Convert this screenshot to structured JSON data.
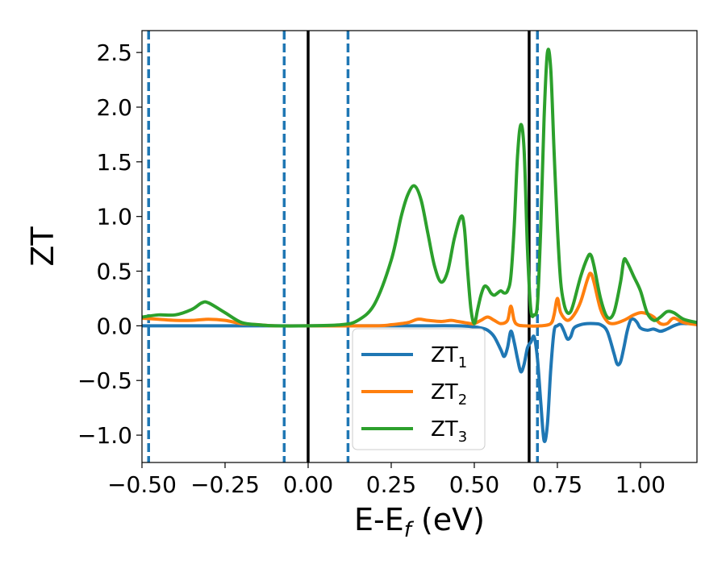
{
  "chart_data": {
    "type": "line",
    "xlabel": "E-E",
    "xlabel_sub": "f",
    "xlabel_unit": "(eV)",
    "ylabel": "ZT",
    "xlim": [
      -0.5,
      1.17
    ],
    "ylim": [
      -1.25,
      2.7
    ],
    "xticks": [
      -0.5,
      -0.25,
      0.0,
      0.25,
      0.5,
      0.75,
      1.0
    ],
    "xtick_labels": [
      "−0.50",
      "−0.25",
      "0.00",
      "0.25",
      "0.50",
      "0.75",
      "1.00"
    ],
    "yticks": [
      -1.0,
      -0.5,
      0.0,
      0.5,
      1.0,
      1.5,
      2.0,
      2.5
    ],
    "ytick_labels": [
      "−1.0",
      "−0.5",
      "0.0",
      "0.5",
      "1.0",
      "1.5",
      "2.0",
      "2.5"
    ],
    "grid": false,
    "legend_position": "lower-center",
    "vlines_solid": [
      0.0,
      0.665
    ],
    "vlines_dashed": [
      -0.48,
      -0.072,
      0.12,
      0.69
    ],
    "series": [
      {
        "name": "ZT",
        "name_sub": "1",
        "color": "#1f77b4",
        "x": [
          -0.5,
          -0.3,
          0.0,
          0.3,
          0.45,
          0.5,
          0.52,
          0.54,
          0.56,
          0.58,
          0.59,
          0.6,
          0.61,
          0.62,
          0.63,
          0.64,
          0.65,
          0.66,
          0.67,
          0.68,
          0.69,
          0.7,
          0.71,
          0.72,
          0.73,
          0.74,
          0.75,
          0.76,
          0.77,
          0.78,
          0.79,
          0.8,
          0.82,
          0.84,
          0.86,
          0.88,
          0.9,
          0.92,
          0.93,
          0.94,
          0.95,
          0.96,
          0.97,
          0.98,
          0.99,
          1.0,
          1.02,
          1.04,
          1.06,
          1.08,
          1.1,
          1.12,
          1.14,
          1.17
        ],
        "y": [
          0.0,
          0.0,
          0.0,
          0.0,
          0.0,
          -0.01,
          -0.02,
          -0.04,
          -0.1,
          -0.22,
          -0.28,
          -0.2,
          -0.05,
          -0.15,
          -0.3,
          -0.42,
          -0.35,
          -0.2,
          -0.15,
          -0.1,
          -0.3,
          -0.7,
          -1.05,
          -0.9,
          -0.4,
          -0.05,
          0.0,
          0.01,
          -0.05,
          -0.12,
          -0.1,
          -0.02,
          0.01,
          0.02,
          0.02,
          0.01,
          -0.05,
          -0.25,
          -0.35,
          -0.33,
          -0.2,
          -0.05,
          0.05,
          0.06,
          0.03,
          -0.02,
          -0.04,
          -0.03,
          -0.05,
          -0.03,
          0.0,
          0.02,
          0.02,
          0.02
        ]
      },
      {
        "name": "ZT",
        "name_sub": "2",
        "color": "#ff7f0e",
        "x": [
          -0.5,
          -0.45,
          -0.4,
          -0.35,
          -0.3,
          -0.25,
          -0.2,
          -0.15,
          -0.1,
          0.0,
          0.2,
          0.25,
          0.3,
          0.33,
          0.36,
          0.4,
          0.43,
          0.45,
          0.47,
          0.49,
          0.5,
          0.52,
          0.54,
          0.56,
          0.58,
          0.6,
          0.61,
          0.62,
          0.63,
          0.65,
          0.7,
          0.73,
          0.74,
          0.75,
          0.76,
          0.78,
          0.8,
          0.82,
          0.84,
          0.85,
          0.86,
          0.88,
          0.9,
          0.92,
          0.95,
          0.98,
          1.0,
          1.02,
          1.04,
          1.06,
          1.08,
          1.1,
          1.13,
          1.17
        ],
        "y": [
          0.07,
          0.06,
          0.05,
          0.05,
          0.06,
          0.05,
          0.02,
          0.01,
          0.0,
          0.0,
          0.0,
          0.01,
          0.03,
          0.06,
          0.05,
          0.04,
          0.05,
          0.04,
          0.03,
          0.02,
          0.02,
          0.05,
          0.08,
          0.05,
          0.02,
          0.05,
          0.18,
          0.05,
          0.01,
          0.0,
          0.0,
          0.02,
          0.1,
          0.25,
          0.12,
          0.05,
          0.1,
          0.22,
          0.42,
          0.48,
          0.4,
          0.15,
          0.04,
          0.02,
          0.05,
          0.1,
          0.12,
          0.11,
          0.08,
          0.02,
          0.02,
          0.07,
          0.03,
          0.01
        ]
      },
      {
        "name": "ZT",
        "name_sub": "3",
        "color": "#2ca02c",
        "x": [
          -0.5,
          -0.45,
          -0.4,
          -0.35,
          -0.32,
          -0.3,
          -0.25,
          -0.2,
          -0.15,
          -0.1,
          0.0,
          0.1,
          0.15,
          0.2,
          0.25,
          0.28,
          0.3,
          0.32,
          0.34,
          0.36,
          0.38,
          0.4,
          0.42,
          0.44,
          0.46,
          0.47,
          0.48,
          0.49,
          0.5,
          0.51,
          0.52,
          0.53,
          0.54,
          0.55,
          0.56,
          0.57,
          0.58,
          0.59,
          0.6,
          0.61,
          0.62,
          0.63,
          0.64,
          0.65,
          0.66,
          0.67,
          0.68,
          0.69,
          0.7,
          0.71,
          0.72,
          0.73,
          0.74,
          0.75,
          0.76,
          0.77,
          0.78,
          0.79,
          0.8,
          0.82,
          0.84,
          0.85,
          0.86,
          0.88,
          0.9,
          0.92,
          0.94,
          0.95,
          0.96,
          0.98,
          1.0,
          1.02,
          1.04,
          1.06,
          1.08,
          1.1,
          1.13,
          1.17
        ],
        "y": [
          0.08,
          0.1,
          0.1,
          0.15,
          0.21,
          0.21,
          0.12,
          0.03,
          0.01,
          0.0,
          0.0,
          0.01,
          0.05,
          0.2,
          0.6,
          1.0,
          1.2,
          1.28,
          1.15,
          0.85,
          0.55,
          0.4,
          0.5,
          0.8,
          1.0,
          0.9,
          0.5,
          0.15,
          0.02,
          0.15,
          0.28,
          0.36,
          0.35,
          0.3,
          0.28,
          0.3,
          0.32,
          0.3,
          0.32,
          0.45,
          0.9,
          1.55,
          1.84,
          1.6,
          0.7,
          0.15,
          0.1,
          0.2,
          0.9,
          1.9,
          2.5,
          2.35,
          1.6,
          0.9,
          0.4,
          0.2,
          0.12,
          0.13,
          0.22,
          0.45,
          0.62,
          0.65,
          0.55,
          0.25,
          0.08,
          0.12,
          0.4,
          0.6,
          0.58,
          0.45,
          0.32,
          0.12,
          0.05,
          0.08,
          0.13,
          0.12,
          0.06,
          0.03
        ]
      }
    ]
  }
}
